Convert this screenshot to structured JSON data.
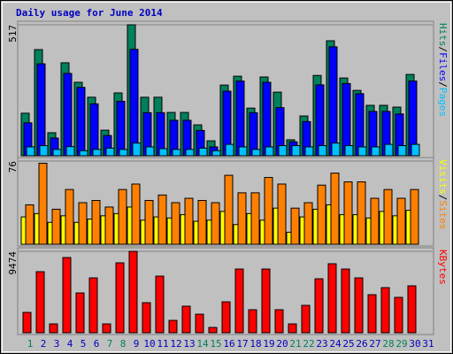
{
  "chart_data": [
    {
      "type": "bar",
      "title": "Daily usage for June 2014",
      "legend_separator": "/",
      "ylim": [
        0,
        517
      ],
      "yticks": [
        517
      ],
      "series": [
        {
          "name": "Hits",
          "color": "#00805c",
          "values": [
            168,
            419,
            91,
            367,
            290,
            231,
            101,
            248,
            517,
            231,
            231,
            171,
            171,
            122,
            59,
            279,
            314,
            188,
            311,
            251,
            63,
            157,
            317,
            454,
            307,
            258,
            199,
            199,
            192,
            321,
            0
          ]
        },
        {
          "name": "Files",
          "color": "#0000ff",
          "values": [
            130,
            363,
            70,
            325,
            270,
            205,
            80,
            215,
            420,
            170,
            170,
            140,
            140,
            100,
            35,
            255,
            295,
            170,
            290,
            190,
            55,
            135,
            280,
            430,
            285,
            245,
            175,
            175,
            165,
            295,
            0
          ]
        },
        {
          "name": "Pages",
          "color": "#00c0ff",
          "values": [
            35,
            40,
            25,
            36,
            20,
            25,
            30,
            25,
            50,
            35,
            28,
            25,
            25,
            30,
            20,
            45,
            35,
            25,
            35,
            40,
            40,
            35,
            40,
            50,
            40,
            35,
            35,
            45,
            40,
            45,
            0
          ]
        }
      ]
    },
    {
      "type": "bar",
      "legend_separator": "/",
      "ylim": [
        0,
        76
      ],
      "yticks": [
        76
      ],
      "series": [
        {
          "name": "Visits",
          "color": "#ffff00",
          "values": [
            25,
            28,
            20,
            26,
            20,
            23,
            26,
            28,
            34,
            22,
            25,
            24,
            27,
            21,
            22,
            30,
            18,
            28,
            22,
            33,
            11,
            25,
            32,
            36,
            27,
            27,
            24,
            30,
            26,
            31,
            0
          ]
        },
        {
          "name": "Sites",
          "color": "#ff8000",
          "values": [
            36,
            74,
            32,
            50,
            38,
            40,
            34,
            50,
            55,
            40,
            45,
            38,
            42,
            40,
            38,
            63,
            47,
            47,
            61,
            55,
            33,
            38,
            54,
            65,
            57,
            57,
            42,
            50,
            42,
            50,
            0
          ]
        }
      ]
    },
    {
      "type": "bar",
      "ylim": [
        0,
        9474
      ],
      "yticks": [
        9474
      ],
      "categories": [
        "1",
        "2",
        "3",
        "4",
        "5",
        "6",
        "7",
        "8",
        "9",
        "10",
        "11",
        "12",
        "13",
        "14",
        "15",
        "16",
        "17",
        "18",
        "19",
        "20",
        "21",
        "22",
        "23",
        "24",
        "25",
        "26",
        "27",
        "28",
        "29",
        "30",
        "31"
      ],
      "category_colors": [
        "#00805c",
        "#0000c0",
        "#0000c0",
        "#0000c0",
        "#0000c0",
        "#0000c0",
        "#00805c",
        "#00805c",
        "#0000c0",
        "#0000c0",
        "#0000c0",
        "#0000c0",
        "#0000c0",
        "#00805c",
        "#00805c",
        "#0000c0",
        "#0000c0",
        "#0000c0",
        "#0000c0",
        "#0000c0",
        "#00805c",
        "#00805c",
        "#0000c0",
        "#0000c0",
        "#0000c0",
        "#0000c0",
        "#0000c0",
        "#00805c",
        "#00805c",
        "#0000c0",
        "#0000c0"
      ],
      "series": [
        {
          "name": "KBytes",
          "color": "#ff0000",
          "values": [
            2369,
            7106,
            1030,
            8753,
            4634,
            6385,
            1030,
            8135,
            9474,
            3500,
            6590,
            1440,
            3090,
            2160,
            620,
            3600,
            7415,
            2680,
            7415,
            2680,
            1030,
            3190,
            6280,
            8030,
            7415,
            6385,
            4430,
            5250,
            4120,
            5460,
            0
          ]
        }
      ]
    }
  ]
}
